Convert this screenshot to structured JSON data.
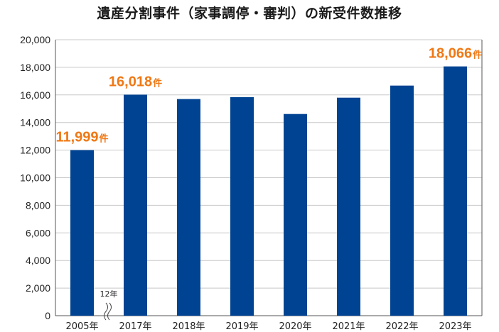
{
  "chart_data": {
    "type": "bar",
    "title": "遺産分割事件（家事調停・審判）の新受件数推移",
    "categories": [
      "2005年",
      "2017年",
      "2018年",
      "2019年",
      "2020年",
      "2021年",
      "2022年",
      "2023年"
    ],
    "values": [
      11999,
      16018,
      15700,
      15842,
      14617,
      15800,
      16676,
      18066
    ],
    "ylim": [
      0,
      20000
    ],
    "yticks": [
      "0",
      "2,000",
      "4,000",
      "6,000",
      "8,000",
      "10,000",
      "12,000",
      "14,000",
      "16,000",
      "18,000",
      "20,000"
    ],
    "grid": true,
    "annotations": [
      {
        "index": 0,
        "number": "11,999",
        "unit": "件"
      },
      {
        "index": 1,
        "number": "16,018",
        "unit": "件"
      },
      {
        "index": 7,
        "number": "18,066",
        "unit": "件"
      }
    ],
    "axis_break_label": "12年"
  },
  "colors": {
    "bar": "#004393",
    "highlight": "#f07814",
    "grid": "#c8c8c8",
    "axis": "#555555"
  }
}
